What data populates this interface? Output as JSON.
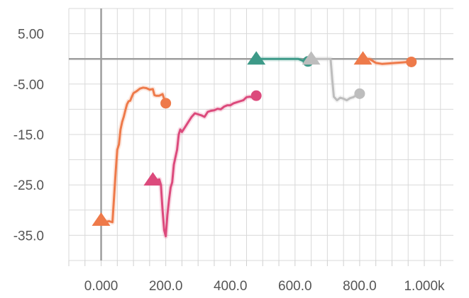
{
  "chart_data": {
    "type": "line",
    "xlim": [
      -100,
      1090
    ],
    "ylim": [
      -40,
      10
    ],
    "grid": true,
    "x_ticks": [
      {
        "value": 0,
        "label": "0.000"
      },
      {
        "value": 200,
        "label": "200.0"
      },
      {
        "value": 400,
        "label": "400.0"
      },
      {
        "value": 600,
        "label": "600.0"
      },
      {
        "value": 800,
        "label": "800.0"
      },
      {
        "value": 1000,
        "label": "1.000k"
      }
    ],
    "y_ticks": [
      {
        "value": 5,
        "label": "5.00"
      },
      {
        "value": -5,
        "label": "-5.00"
      },
      {
        "value": -15,
        "label": "-15.0"
      },
      {
        "value": -25,
        "label": "-25.0"
      },
      {
        "value": -35,
        "label": "-35.0"
      }
    ],
    "series": [
      {
        "color": "#ee7a4a",
        "x": [
          0,
          15,
          25,
          35,
          45,
          50,
          55,
          60,
          65,
          70,
          75,
          80,
          85,
          90,
          95,
          100,
          110,
          120,
          130,
          140,
          150,
          160,
          165,
          170,
          180,
          190,
          200
        ],
        "y": [
          -32,
          -32.3,
          -32.2,
          -32.4,
          -22.5,
          -18,
          -17,
          -14,
          -12.5,
          -11.5,
          -10.2,
          -9,
          -8.4,
          -8.3,
          -7.5,
          -6.8,
          -6.4,
          -5.9,
          -5.7,
          -5.8,
          -6.1,
          -6.0,
          -7.2,
          -7.3,
          -7.3,
          -7.0,
          -8.8
        ]
      },
      {
        "color": "#dc4a7c",
        "x": [
          160,
          170,
          180,
          185,
          190,
          195,
          200,
          205,
          210,
          215,
          220,
          225,
          230,
          235,
          240,
          245,
          250,
          260,
          270,
          280,
          290,
          300,
          310,
          320,
          330,
          340,
          350,
          360,
          370,
          380,
          390,
          400,
          410,
          420,
          430,
          440,
          450,
          460,
          470,
          480
        ],
        "y": [
          -24,
          -24.1,
          -23.9,
          -25,
          -30,
          -34,
          -35.2,
          -31,
          -28,
          -25.5,
          -24.5,
          -21,
          -19.5,
          -18,
          -15,
          -14,
          -14.5,
          -13.5,
          -12.5,
          -11.5,
          -10.8,
          -11,
          -11.2,
          -11.5,
          -10.5,
          -10.3,
          -10.2,
          -9.9,
          -10,
          -9.5,
          -9.2,
          -9.2,
          -8.8,
          -8.6,
          -8.4,
          -8.2,
          -7.6,
          -7.5,
          -7.7,
          -7.3
        ]
      },
      {
        "color": "#3d9a88",
        "x": [
          480,
          490,
          510,
          530,
          560,
          590,
          610,
          625,
          640
        ],
        "y": [
          0,
          0,
          0,
          0,
          0,
          0,
          0,
          -0.4,
          -0.5
        ]
      },
      {
        "color": "#bdbdbd",
        "x": [
          650,
          660,
          680,
          700,
          710,
          712,
          715,
          720,
          730,
          740,
          750,
          760,
          770,
          780,
          790,
          800
        ],
        "y": [
          0,
          0,
          0,
          0,
          0,
          -1.5,
          -4,
          -7.5,
          -8.2,
          -7.7,
          -7.9,
          -8.2,
          -7.8,
          -7.6,
          -7.2,
          -6.9
        ]
      },
      {
        "color": "#ee7a4a",
        "x": [
          810,
          830,
          850,
          870,
          890,
          910,
          930,
          950,
          960
        ],
        "y": [
          0,
          0,
          -0.8,
          -1.0,
          -0.9,
          -0.8,
          -0.7,
          -0.6,
          -0.6
        ]
      }
    ]
  }
}
